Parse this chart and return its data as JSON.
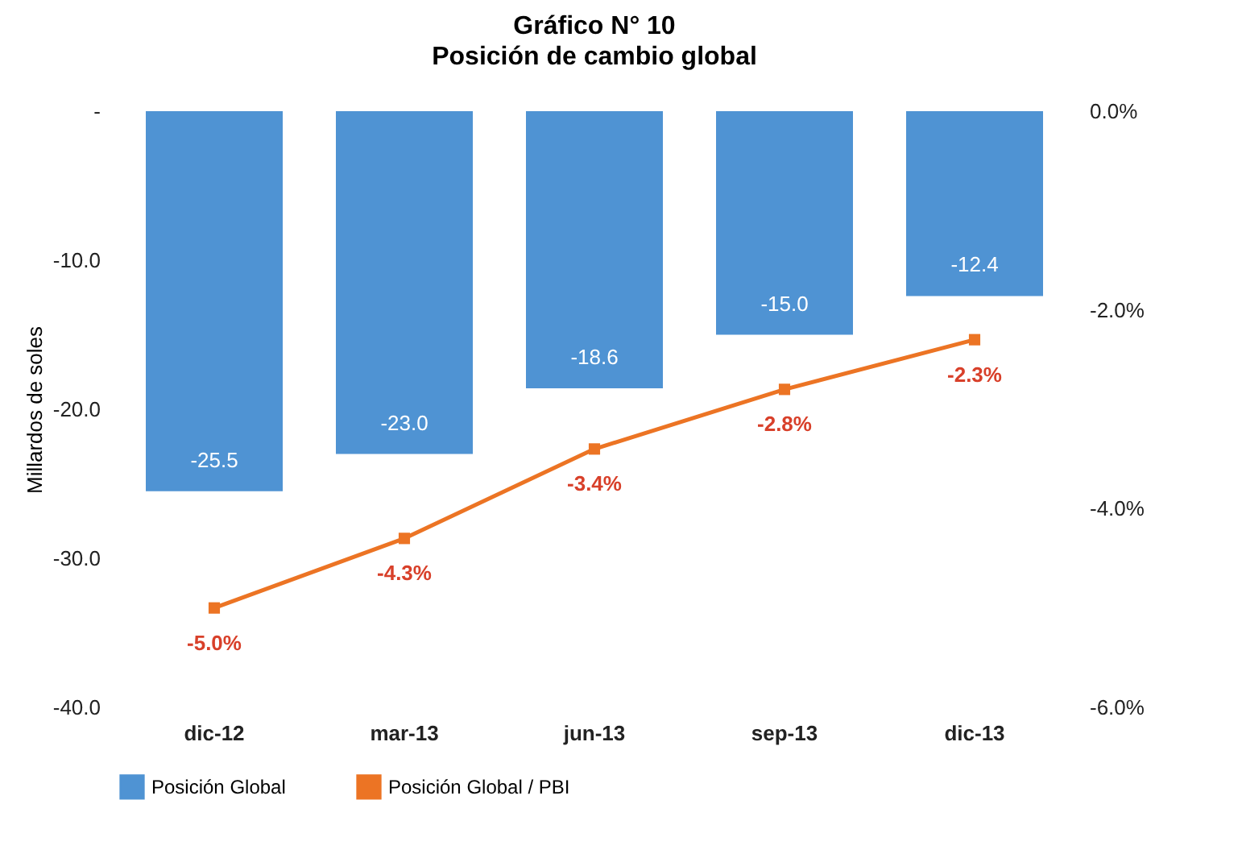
{
  "chart_data": {
    "type": "bar",
    "title": "Gráfico N° 10",
    "subtitle": "Posición de cambio global",
    "ylabel": "Millardos de soles",
    "categories": [
      "dic-12",
      "mar-13",
      "jun-13",
      "sep-13",
      "dic-13"
    ],
    "series": [
      {
        "name": "Posición Global",
        "color": "#4f93d3",
        "values": [
          -25.5,
          -23.0,
          -18.6,
          -15.0,
          -12.4
        ],
        "value_labels": [
          "-25.5",
          "-23.0",
          "-18.6",
          "-15.0",
          "-12.4"
        ]
      },
      {
        "name": "Posición Global / PBI",
        "type": "line",
        "axis": "y2",
        "color": "#ec7424",
        "marker": "square",
        "values": [
          -5.0,
          -4.3,
          -3.4,
          -2.8,
          -2.3
        ],
        "value_labels": [
          "-5.0%",
          "-4.3%",
          "-3.4%",
          "-2.8%",
          "-2.3%"
        ]
      }
    ],
    "ylim": [
      -40,
      0
    ],
    "yticks": [
      {
        "value": 0,
        "label": "-"
      },
      {
        "value": -10,
        "label": "-10.0"
      },
      {
        "value": -20,
        "label": "-20.0"
      },
      {
        "value": -30,
        "label": "-30.0"
      },
      {
        "value": -40,
        "label": "-40.0"
      }
    ],
    "y2lim": [
      -6,
      0
    ],
    "y2ticks": [
      {
        "value": 0,
        "label": "0.0%"
      },
      {
        "value": -2,
        "label": "-2.0%"
      },
      {
        "value": -4,
        "label": "-4.0%"
      },
      {
        "value": -6,
        "label": "-6.0%"
      }
    ],
    "legend": "bottom",
    "grid": false
  }
}
